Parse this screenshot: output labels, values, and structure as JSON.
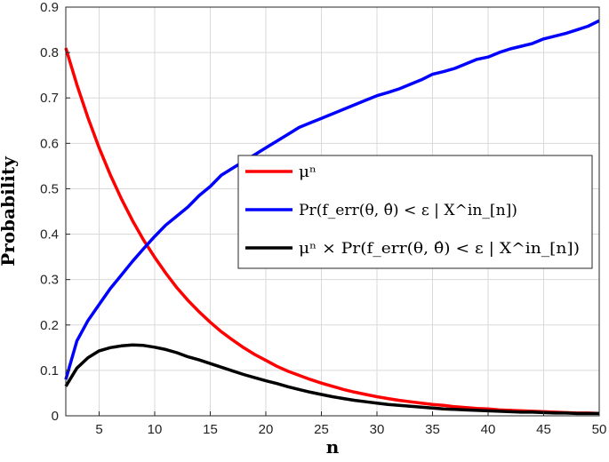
{
  "chart_data": {
    "type": "line",
    "title": "",
    "xlabel": "n",
    "ylabel": "Probability",
    "xlim": [
      2,
      50
    ],
    "ylim": [
      0,
      0.9
    ],
    "xticks": [
      5,
      10,
      15,
      20,
      25,
      30,
      35,
      40,
      45,
      50
    ],
    "yticks": [
      0,
      0.1,
      0.2,
      0.3,
      0.4,
      0.5,
      0.6,
      0.7,
      0.8,
      0.9
    ],
    "grid": true,
    "legend_position": "center-right",
    "x": [
      2,
      3,
      4,
      5,
      6,
      7,
      8,
      9,
      10,
      11,
      12,
      13,
      14,
      15,
      16,
      17,
      18,
      19,
      20,
      21,
      22,
      23,
      24,
      25,
      26,
      27,
      28,
      29,
      30,
      31,
      32,
      33,
      34,
      35,
      36,
      37,
      38,
      39,
      40,
      41,
      42,
      43,
      44,
      45,
      46,
      47,
      48,
      49,
      50
    ],
    "series": [
      {
        "name": "μⁿ",
        "color": "#ff0000",
        "values": [
          0.81,
          0.729,
          0.656,
          0.59,
          0.531,
          0.478,
          0.43,
          0.387,
          0.349,
          0.314,
          0.282,
          0.254,
          0.229,
          0.206,
          0.185,
          0.167,
          0.15,
          0.135,
          0.122,
          0.109,
          0.098,
          0.089,
          0.08,
          0.072,
          0.065,
          0.058,
          0.052,
          0.047,
          0.042,
          0.038,
          0.034,
          0.031,
          0.028,
          0.025,
          0.023,
          0.02,
          0.018,
          0.016,
          0.015,
          0.013,
          0.012,
          0.011,
          0.01,
          0.009,
          0.008,
          0.007,
          0.006,
          0.006,
          0.005
        ]
      },
      {
        "name": "Pr(f_err(θ, θ̂) < ε | X^in_[n])",
        "color": "#0000ff",
        "values": [
          0.08,
          0.165,
          0.21,
          0.245,
          0.28,
          0.31,
          0.34,
          0.368,
          0.395,
          0.42,
          0.44,
          0.46,
          0.485,
          0.505,
          0.53,
          0.545,
          0.56,
          0.575,
          0.59,
          0.605,
          0.62,
          0.635,
          0.645,
          0.655,
          0.665,
          0.675,
          0.685,
          0.695,
          0.705,
          0.712,
          0.72,
          0.73,
          0.74,
          0.752,
          0.758,
          0.765,
          0.775,
          0.785,
          0.79,
          0.8,
          0.808,
          0.814,
          0.82,
          0.83,
          0.836,
          0.842,
          0.85,
          0.858,
          0.87
        ]
      },
      {
        "name": "μⁿ × Pr(f_err(θ, θ̂) < ε | X^in_[n])",
        "color": "#000000",
        "values": [
          0.065,
          0.105,
          0.128,
          0.143,
          0.15,
          0.154,
          0.156,
          0.155,
          0.151,
          0.146,
          0.139,
          0.13,
          0.123,
          0.115,
          0.107,
          0.099,
          0.091,
          0.084,
          0.077,
          0.071,
          0.064,
          0.058,
          0.052,
          0.047,
          0.042,
          0.038,
          0.034,
          0.031,
          0.028,
          0.025,
          0.023,
          0.021,
          0.019,
          0.017,
          0.015,
          0.014,
          0.013,
          0.012,
          0.011,
          0.01,
          0.009,
          0.008,
          0.008,
          0.007,
          0.006,
          0.006,
          0.005,
          0.005,
          0.005
        ]
      }
    ]
  }
}
